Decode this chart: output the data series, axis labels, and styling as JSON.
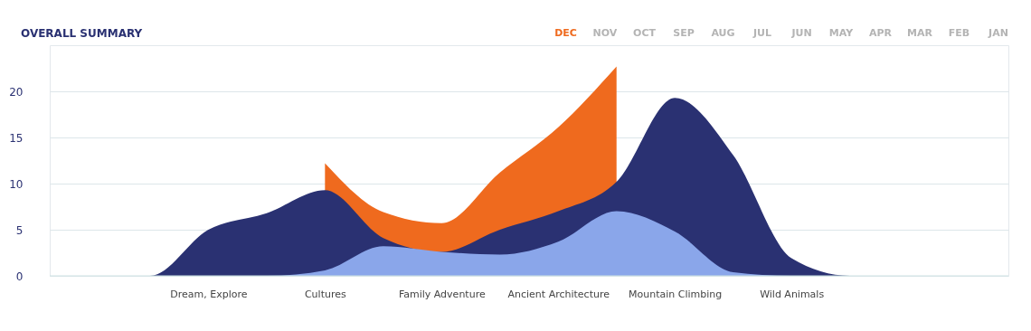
{
  "chart_data": {
    "type": "area",
    "title": "OVERALL SUMMARY",
    "annotations": [
      "DEC",
      "NOV",
      "OCT",
      "SEP",
      "AUG",
      "JUL",
      "JUN",
      "MAY",
      "APR",
      "MAR",
      "FEB",
      "JAN"
    ],
    "categories": [
      null,
      null,
      "Dream, Explore",
      null,
      "Cultures",
      null,
      "Family Adventure",
      null,
      "Ancient Architecture",
      null,
      "Mountain Climbing",
      null,
      "Wild Animals",
      null,
      null,
      null
    ],
    "series": [
      {
        "color": "#ef6a1e",
        "values": [
          null,
          null,
          null,
          null,
          12.2,
          6.9,
          5.7,
          11.2,
          16.1,
          22.7,
          null,
          null,
          null,
          null,
          null,
          null
        ]
      },
      {
        "color": "#2a3172",
        "values": [
          0,
          0,
          5,
          6.8,
          9.3,
          4.1,
          2.6,
          5,
          7,
          10.2,
          19.3,
          13.1,
          1.9,
          0,
          0,
          0
        ]
      },
      {
        "color": "#8aa6ea",
        "values": [
          0,
          0,
          0,
          0,
          0.6,
          3.2,
          2.6,
          2.3,
          3.7,
          7,
          4.8,
          0.4,
          0,
          0,
          0,
          0
        ]
      }
    ],
    "ylim": [
      0,
      25
    ],
    "yticks": [
      0,
      5,
      10,
      15,
      20
    ],
    "grid": "y"
  }
}
